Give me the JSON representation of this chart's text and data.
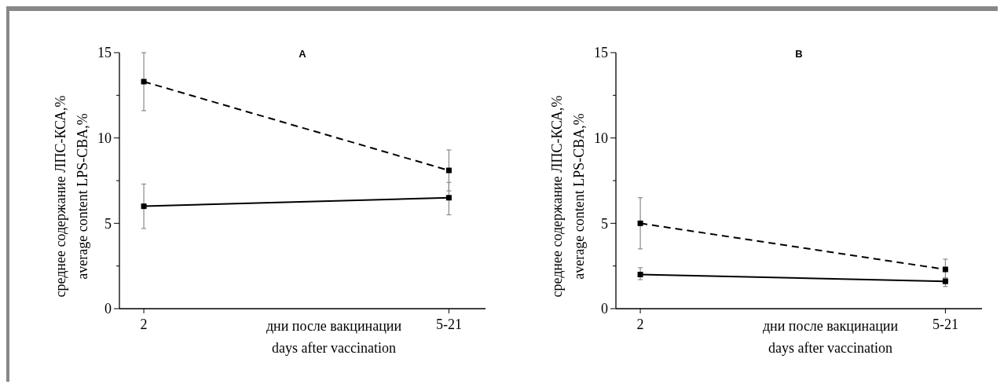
{
  "chart_data": [
    {
      "type": "line",
      "title": "A",
      "xlabel": "дни после вакцинации\ndays after vaccination",
      "ylabel": "среднее содержание ЛПС-КСА,%\naverage content LPS-CBA,%",
      "categories": [
        "2",
        "5-21"
      ],
      "ylim": [
        0,
        15
      ],
      "yticks": [
        0,
        {
          "value": 2.5,
          "label": null
        },
        5,
        {
          "value": 7.5,
          "label": null
        },
        10,
        {
          "value": 12.5,
          "label": null
        },
        15
      ],
      "marker": "square",
      "series": [
        {
          "color": "#000000",
          "line_style": "dashed",
          "values": [
            13.3,
            8.1
          ],
          "errors": [
            [
              11.6,
              15.0
            ],
            [
              6.9,
              9.3
            ]
          ]
        },
        {
          "color": "#000000",
          "line_style": "solid",
          "values": [
            6.0,
            6.5
          ],
          "errors": [
            [
              4.7,
              7.3
            ],
            [
              5.5,
              7.4
            ]
          ]
        }
      ]
    },
    {
      "type": "line",
      "title": "B",
      "xlabel": "дни после вакцинации\ndays after vaccination",
      "ylabel": "среднее содержание ЛПС-КСА,%\naverage content LPS-CBA,%",
      "categories": [
        "2",
        "5-21"
      ],
      "ylim": [
        0,
        15
      ],
      "yticks": [
        0,
        {
          "value": 2.5,
          "label": null
        },
        5,
        {
          "value": 7.5,
          "label": null
        },
        10,
        {
          "value": 12.5,
          "label": null
        },
        15
      ],
      "marker": "square",
      "series": [
        {
          "color": "#000000",
          "line_style": "dashed",
          "values": [
            5.0,
            2.3
          ],
          "errors": [
            [
              3.5,
              6.5
            ],
            [
              1.8,
              2.9
            ]
          ]
        },
        {
          "color": "#000000",
          "line_style": "solid",
          "values": [
            2.0,
            1.6
          ],
          "errors": [
            [
              1.7,
              2.4
            ],
            [
              1.3,
              1.8
            ]
          ]
        }
      ]
    }
  ]
}
